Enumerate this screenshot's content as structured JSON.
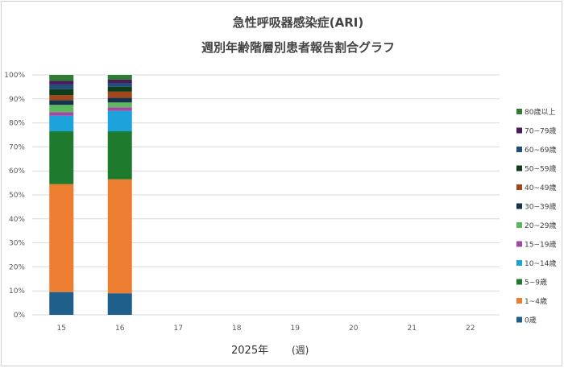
{
  "chart_data": {
    "type": "bar",
    "stacked": true,
    "normalized": true,
    "title": "急性呼吸器感染症(ARI)",
    "subtitle": "週別年齢階層別患者報告割合グラフ",
    "xlabel": "2025年",
    "xunit": "(週)",
    "ylabel": "",
    "ylim": [
      0,
      100
    ],
    "yticks": [
      "0%",
      "10%",
      "20%",
      "30%",
      "40%",
      "50%",
      "60%",
      "70%",
      "80%",
      "90%",
      "100%"
    ],
    "categories": [
      "15",
      "16",
      "17",
      "18",
      "19",
      "20",
      "21",
      "22"
    ],
    "grid": true,
    "legend_position": "right",
    "series": [
      {
        "name": "0歳",
        "color": "#1f5f8b",
        "values": [
          9.5,
          9.0,
          null,
          null,
          null,
          null,
          null,
          null
        ]
      },
      {
        "name": "1~4歳",
        "color": "#ed7d31",
        "values": [
          45.0,
          47.5,
          null,
          null,
          null,
          null,
          null,
          null
        ]
      },
      {
        "name": "5~9歳",
        "color": "#1e7b2e",
        "values": [
          22.0,
          20.0,
          null,
          null,
          null,
          null,
          null,
          null
        ]
      },
      {
        "name": "10~14歳",
        "color": "#1ca3dc",
        "values": [
          6.5,
          8.5,
          null,
          null,
          null,
          null,
          null,
          null
        ]
      },
      {
        "name": "15~19歳",
        "color": "#a349a4",
        "values": [
          1.5,
          1.5,
          null,
          null,
          null,
          null,
          null,
          null
        ]
      },
      {
        "name": "20~29歳",
        "color": "#5cb85c",
        "values": [
          3.0,
          2.0,
          null,
          null,
          null,
          null,
          null,
          null
        ]
      },
      {
        "name": "30~39歳",
        "color": "#17324d",
        "values": [
          2.0,
          2.0,
          null,
          null,
          null,
          null,
          null,
          null
        ]
      },
      {
        "name": "40~49歳",
        "color": "#a5451a",
        "values": [
          2.0,
          2.5,
          null,
          null,
          null,
          null,
          null,
          null
        ]
      },
      {
        "name": "50~59歳",
        "color": "#0f3d1a",
        "values": [
          2.5,
          2.0,
          null,
          null,
          null,
          null,
          null,
          null
        ]
      },
      {
        "name": "60~69歳",
        "color": "#1f4e79",
        "values": [
          2.0,
          1.5,
          null,
          null,
          null,
          null,
          null,
          null
        ]
      },
      {
        "name": "70~79歳",
        "color": "#4b1a5a",
        "values": [
          1.5,
          1.5,
          null,
          null,
          null,
          null,
          null,
          null
        ]
      },
      {
        "name": "80歳以上",
        "color": "#2e7d32",
        "values": [
          2.5,
          2.0,
          null,
          null,
          null,
          null,
          null,
          null
        ]
      }
    ]
  }
}
